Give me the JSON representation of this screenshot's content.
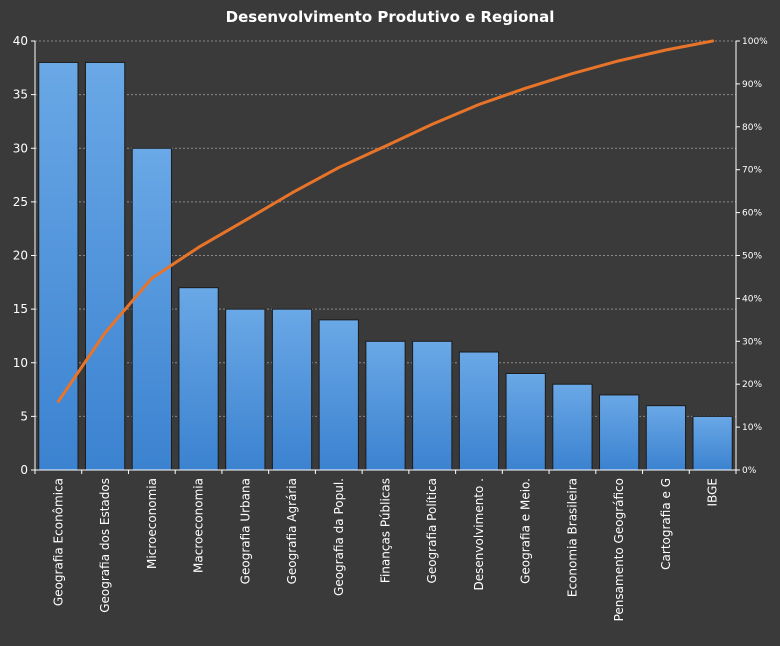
{
  "chart_data": {
    "type": "bar",
    "title": "Desenvolvimento  Produtivo  e  Regional",
    "categories": [
      "Geografia Econômica",
      "Geografia dos Estados",
      "Microeconomia",
      "Macroeconomia",
      "Geografia Urbana",
      "Geografia Agrária",
      "Geografia da Popul.",
      "Finanças Públicas",
      "Geografia Política",
      "Desenvolvimento  .",
      "Geografia e Meio.",
      "Economia Brasileira",
      "Pensamento  Geográfico",
      "Cartografia e G",
      "IBGE"
    ],
    "series": [
      {
        "type": "bar",
        "values": [
          38,
          38,
          30,
          17,
          15,
          15,
          14,
          12,
          12,
          11,
          9,
          8,
          7,
          6,
          5
        ]
      },
      {
        "type": "line",
        "axis": "secondary",
        "values": [
          16.0,
          32.0,
          44.7,
          51.9,
          58.2,
          64.6,
          70.5,
          75.5,
          80.6,
          85.2,
          89.0,
          92.4,
          95.4,
          97.9,
          100.0
        ]
      }
    ],
    "ylim": [
      0,
      40
    ],
    "yticks": [
      "0",
      "5",
      "10",
      "15",
      "20",
      "25",
      "30",
      "35",
      "40"
    ],
    "y2lim": [
      0,
      100
    ],
    "y2ticks": [
      "0%",
      "10%",
      "20%",
      "30%",
      "40%",
      "50%",
      "60%",
      "70%",
      "80%",
      "90%",
      "100%"
    ],
    "grid": true,
    "colors": {
      "background": "#3a3a3a",
      "bar": "#4a90dc",
      "bar_border": "#1c1c1c",
      "line": "#e8742a",
      "grid": "#8a8a8a",
      "text": "#ffffff"
    }
  }
}
